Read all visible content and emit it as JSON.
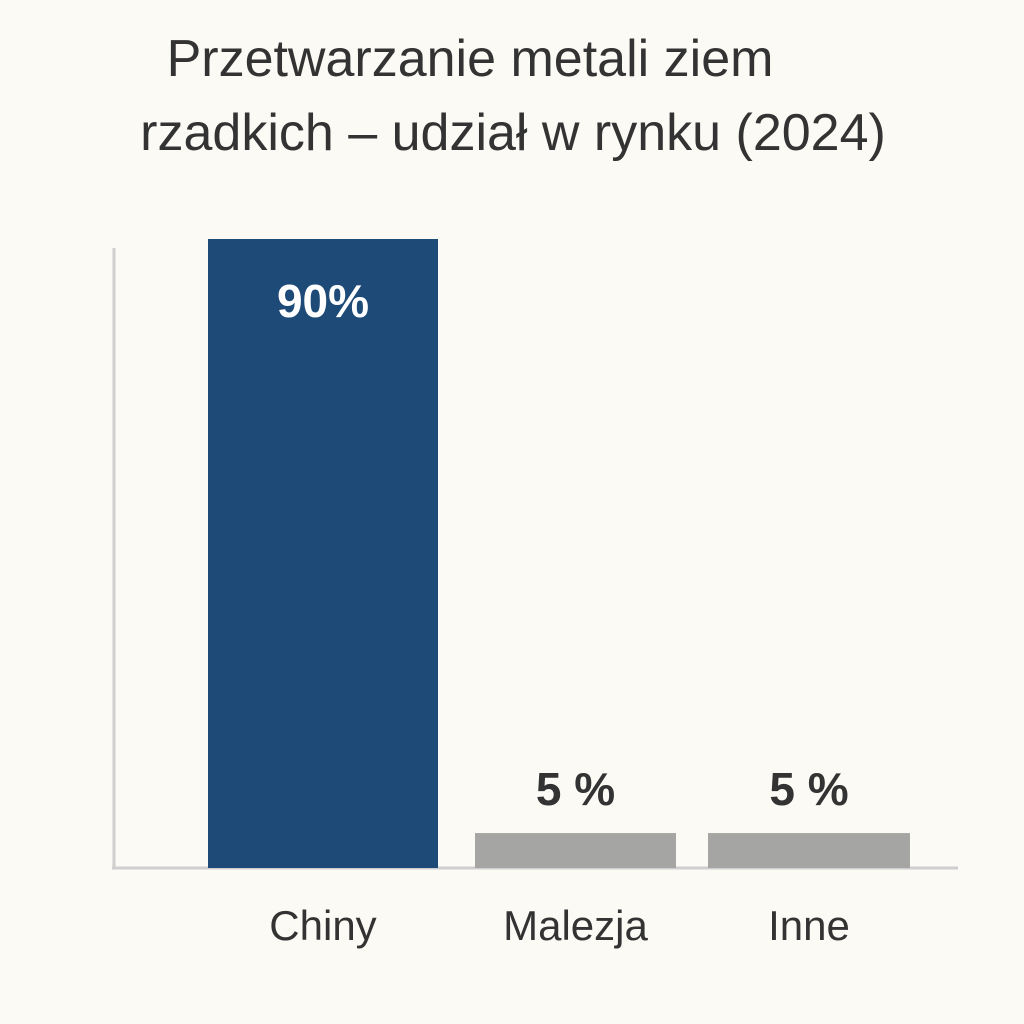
{
  "chart_data": {
    "type": "bar",
    "title_lines": [
      "Przetwarzanie metali ziem",
      "rzadkich – udział w rynku (2024)"
    ],
    "categories": [
      "Chiny",
      "Malezja",
      "Inne"
    ],
    "values": [
      90,
      5,
      5
    ],
    "data_labels": [
      "90%",
      "5 %",
      "5 %"
    ],
    "ylim": [
      0,
      90
    ],
    "xlabel": "",
    "ylabel": "",
    "grid": false,
    "legend": "none",
    "colors": {
      "highlight_bar": "#1e4a78",
      "other_bar": "#a5a5a3",
      "axis": "#cfcfcf",
      "label_on_bar": "#ffffff",
      "label_above_bar": "#333333",
      "text": "#333333",
      "background": "#fbfaf4"
    }
  }
}
